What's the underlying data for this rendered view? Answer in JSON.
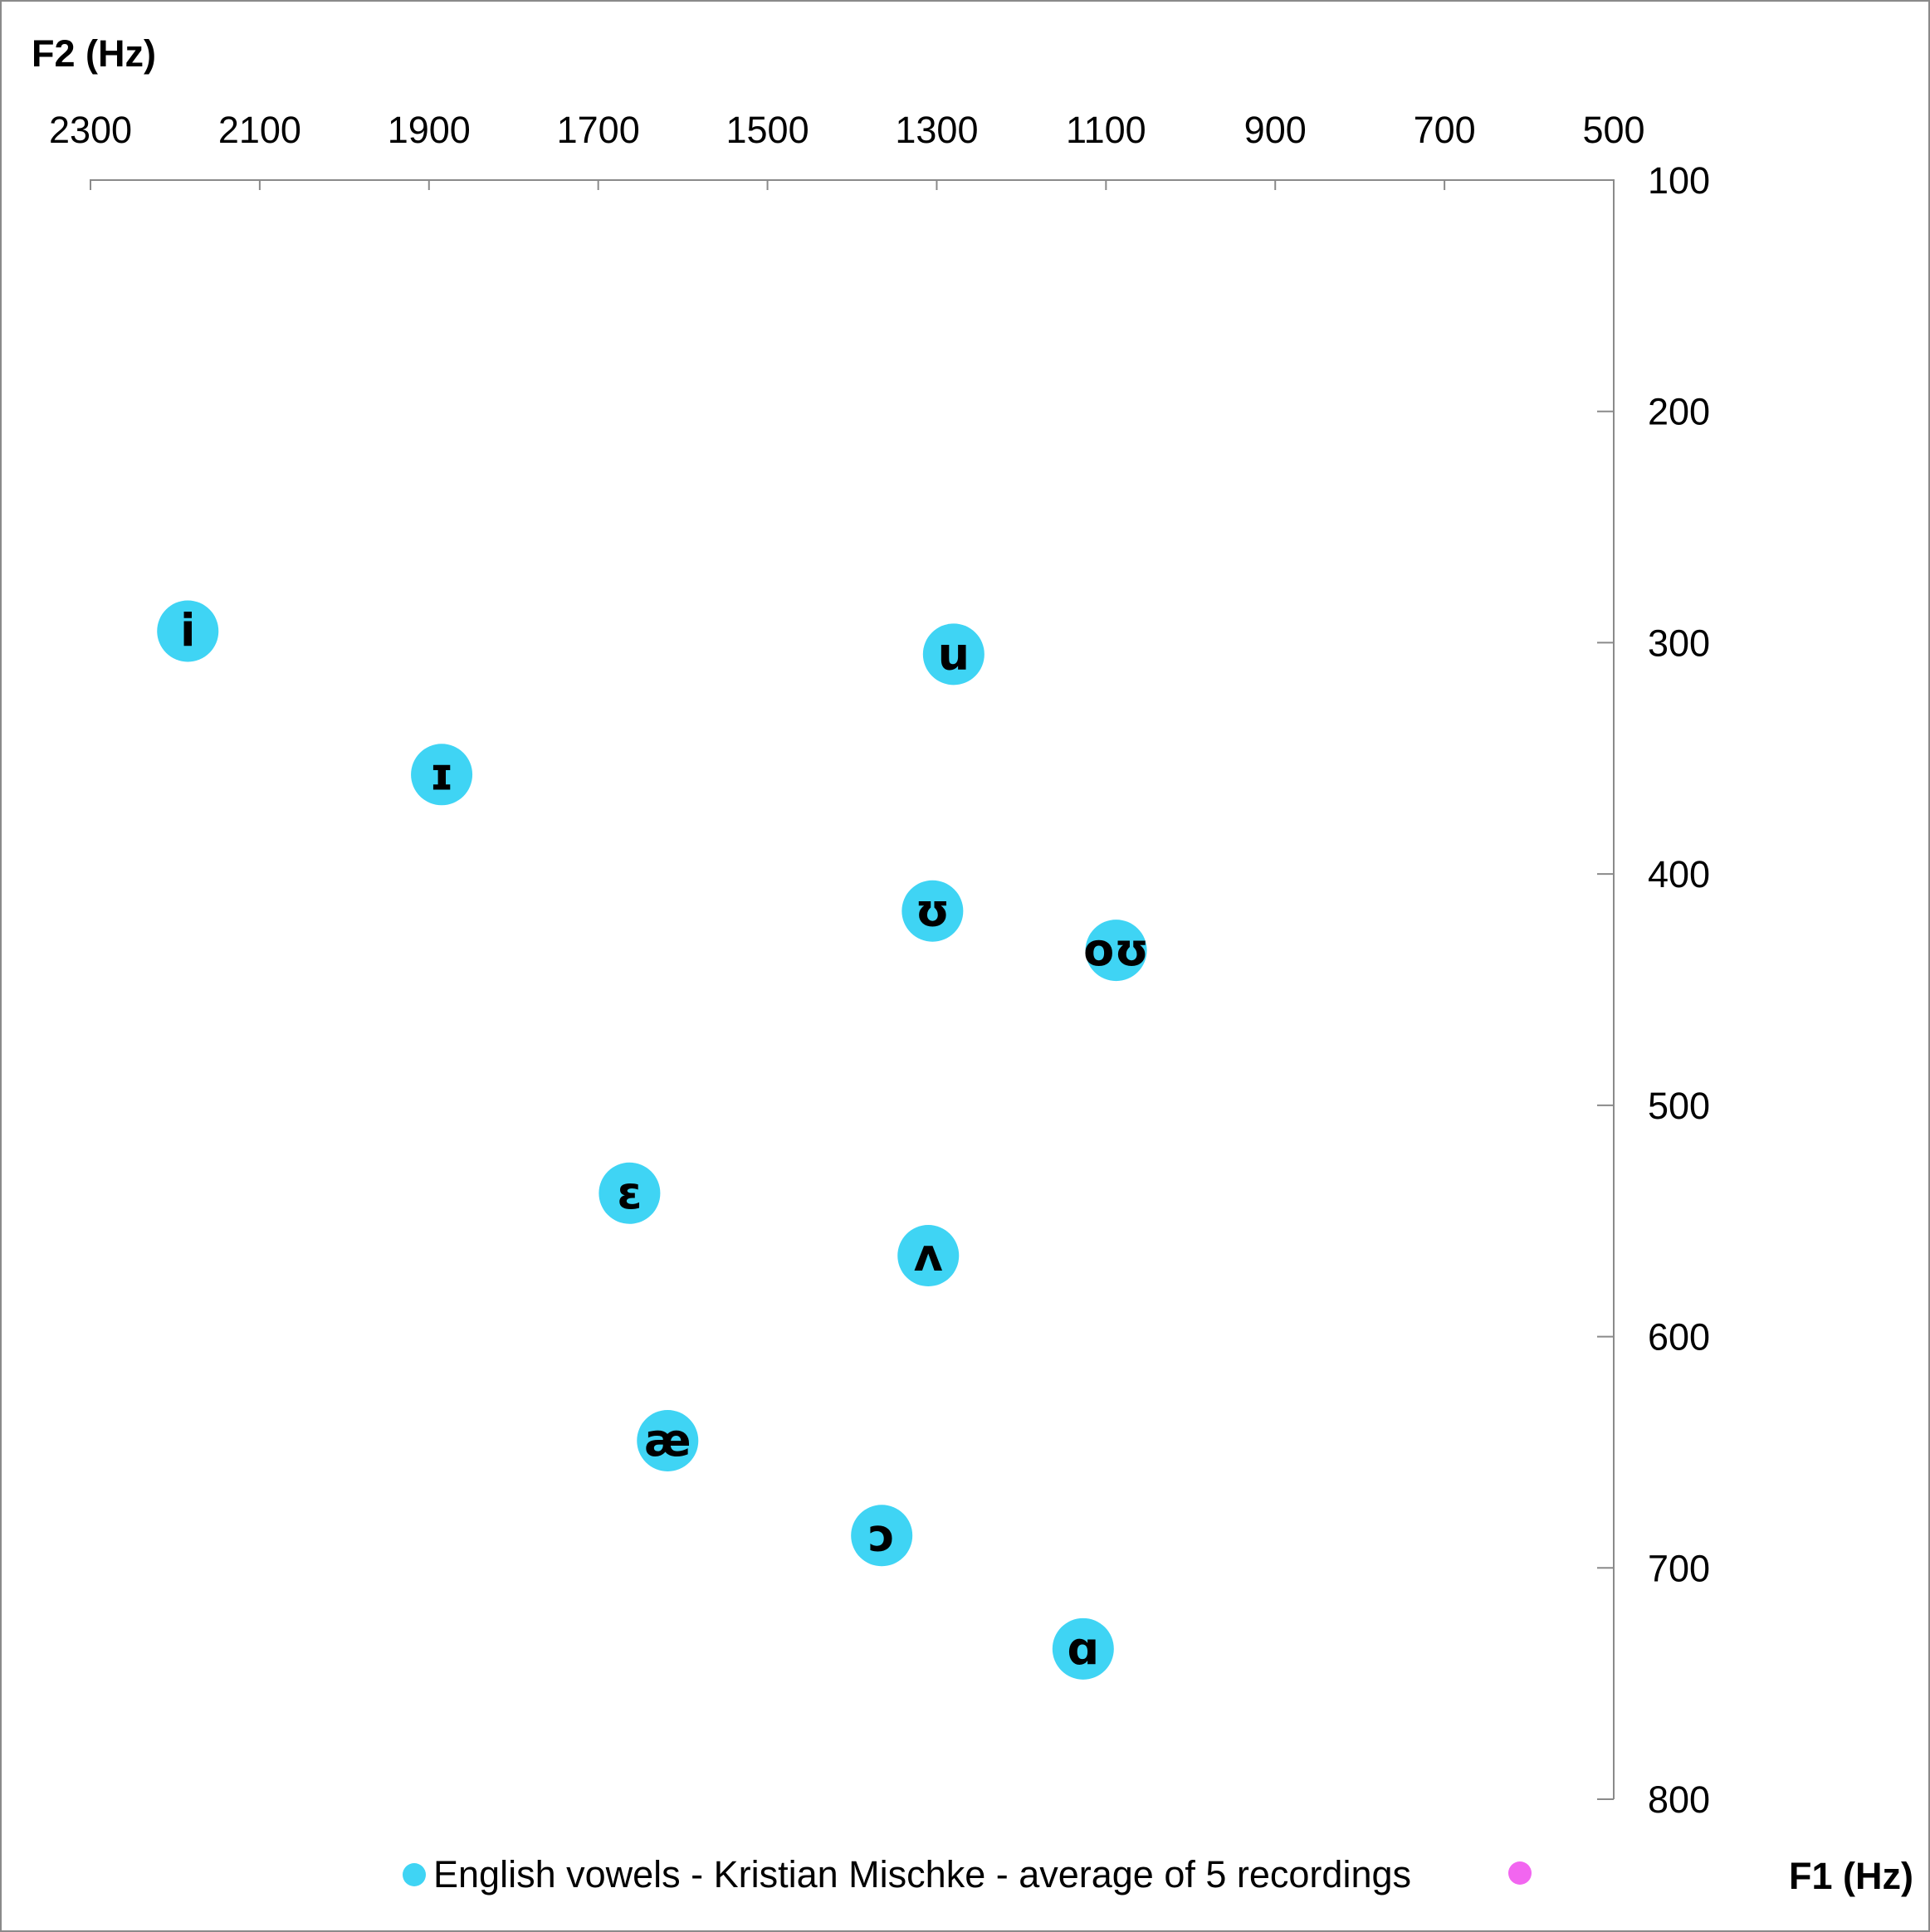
{
  "chart_data": {
    "type": "scatter",
    "x_axis": {
      "label": "F2 (Hz)",
      "range": [
        2300,
        500
      ],
      "ticks": [
        2300,
        2100,
        1900,
        1700,
        1500,
        1300,
        1100,
        900,
        700,
        500
      ],
      "reversed": true,
      "position": "top"
    },
    "y_axis": {
      "label": "F1 (Hz)",
      "range": [
        100,
        800
      ],
      "ticks": [
        100,
        200,
        300,
        400,
        500,
        600,
        700,
        800
      ],
      "reversed": true,
      "position": "right"
    },
    "grid": false,
    "legend_position": "bottom",
    "series": [
      {
        "name": "English vowels - Kristian Mischke - average of 5 recordings",
        "color": "#3fd4f4",
        "points": [
          {
            "label": "i",
            "x": 2185,
            "y": 295
          },
          {
            "label": "u",
            "x": 1280,
            "y": 305
          },
          {
            "label": "ɪ",
            "x": 1885,
            "y": 357
          },
          {
            "label": "ʊ",
            "x": 1305,
            "y": 416
          },
          {
            "label": "oʊ",
            "x": 1088,
            "y": 433
          },
          {
            "label": "ɛ",
            "x": 1663,
            "y": 538
          },
          {
            "label": "ʌ",
            "x": 1310,
            "y": 565
          },
          {
            "label": "æ",
            "x": 1618,
            "y": 645
          },
          {
            "label": "ɔ",
            "x": 1365,
            "y": 686
          },
          {
            "label": "ɑ",
            "x": 1127,
            "y": 735
          }
        ]
      },
      {
        "name": "",
        "color": "#f266f0",
        "points": []
      }
    ]
  }
}
